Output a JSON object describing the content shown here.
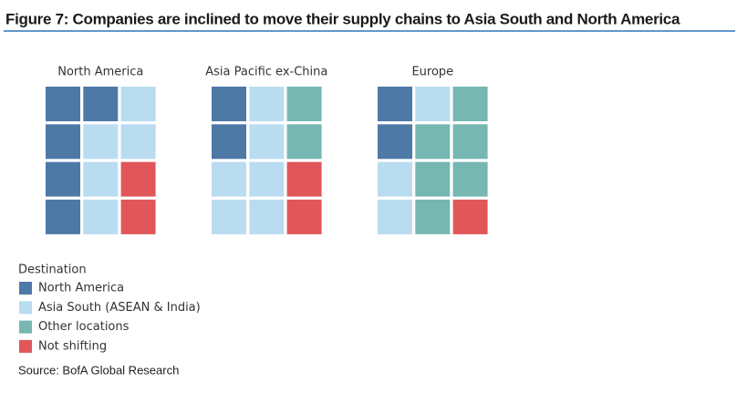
{
  "chart_data": {
    "type": "waffle",
    "title": "Figure 7: Companies are inclined to move their supply chains to Asia South and North America",
    "categories": [
      "North America",
      "Asia Pacific ex-China",
      "Europe"
    ],
    "rows": 4,
    "columns": 3,
    "legend_title": "Destination",
    "series": [
      {
        "name": "North America",
        "color": "#4e79a7",
        "values": [
          5,
          2,
          2
        ]
      },
      {
        "name": "Asia South (ASEAN & India)",
        "color": "#b9dcf1",
        "values": [
          5,
          6,
          3
        ]
      },
      {
        "name": "Other locations",
        "color": "#76b7b2",
        "values": [
          0,
          2,
          6
        ]
      },
      {
        "name": "Not shifting",
        "color": "#e15759",
        "values": [
          2,
          2,
          1
        ]
      }
    ],
    "source": "Source: BofA Global Research"
  }
}
